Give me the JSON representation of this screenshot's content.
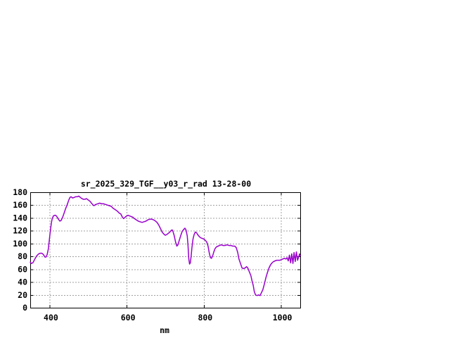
{
  "window": {
    "background": "#ffffff"
  },
  "chart_data": {
    "type": "line",
    "title": "sr_2025_329_TGF__y03_r_rad 13-28-00",
    "xlabel": "nm",
    "ylabel": "",
    "xlim": [
      350,
      1050
    ],
    "ylim": [
      0,
      180
    ],
    "xticks": [
      400,
      600,
      800,
      1000
    ],
    "yticks": [
      0,
      20,
      40,
      60,
      80,
      100,
      120,
      140,
      160,
      180
    ],
    "grid": true,
    "legend_position": "none",
    "line_color": "#9900cc",
    "grid_color": "#a0a0a0",
    "axis_color": "#000000",
    "points": [
      [
        350,
        71
      ],
      [
        353,
        69
      ],
      [
        357,
        70
      ],
      [
        362,
        76
      ],
      [
        367,
        81
      ],
      [
        372,
        84
      ],
      [
        376,
        85
      ],
      [
        380,
        85
      ],
      [
        384,
        83
      ],
      [
        388,
        79
      ],
      [
        391,
        79
      ],
      [
        394,
        83
      ],
      [
        397,
        92
      ],
      [
        399,
        103
      ],
      [
        401,
        114
      ],
      [
        403,
        124
      ],
      [
        405,
        133
      ],
      [
        407,
        139
      ],
      [
        410,
        143
      ],
      [
        413,
        144
      ],
      [
        416,
        144
      ],
      [
        419,
        142
      ],
      [
        423,
        138
      ],
      [
        427,
        135
      ],
      [
        430,
        136
      ],
      [
        434,
        141
      ],
      [
        438,
        148
      ],
      [
        442,
        155
      ],
      [
        446,
        161
      ],
      [
        450,
        168
      ],
      [
        453,
        172
      ],
      [
        456,
        173
      ],
      [
        460,
        171
      ],
      [
        464,
        172
      ],
      [
        468,
        173
      ],
      [
        472,
        173
      ],
      [
        476,
        174
      ],
      [
        480,
        172
      ],
      [
        484,
        170
      ],
      [
        488,
        169
      ],
      [
        492,
        169
      ],
      [
        496,
        170
      ],
      [
        500,
        168
      ],
      [
        505,
        166
      ],
      [
        510,
        162
      ],
      [
        515,
        159
      ],
      [
        520,
        161
      ],
      [
        525,
        162
      ],
      [
        530,
        163
      ],
      [
        535,
        162
      ],
      [
        540,
        162
      ],
      [
        545,
        161
      ],
      [
        550,
        160
      ],
      [
        555,
        159
      ],
      [
        560,
        158
      ],
      [
        565,
        155
      ],
      [
        570,
        153
      ],
      [
        575,
        151
      ],
      [
        580,
        148
      ],
      [
        585,
        146
      ],
      [
        589,
        141
      ],
      [
        592,
        139
      ],
      [
        596,
        141
      ],
      [
        600,
        143
      ],
      [
        604,
        144
      ],
      [
        608,
        143
      ],
      [
        612,
        142
      ],
      [
        616,
        141
      ],
      [
        620,
        139
      ],
      [
        625,
        137
      ],
      [
        630,
        135
      ],
      [
        635,
        134
      ],
      [
        640,
        133
      ],
      [
        645,
        134
      ],
      [
        650,
        135
      ],
      [
        655,
        137
      ],
      [
        660,
        138
      ],
      [
        665,
        138
      ],
      [
        670,
        137
      ],
      [
        675,
        135
      ],
      [
        680,
        132
      ],
      [
        684,
        128
      ],
      [
        688,
        123
      ],
      [
        692,
        118
      ],
      [
        696,
        115
      ],
      [
        700,
        113
      ],
      [
        704,
        114
      ],
      [
        708,
        116
      ],
      [
        712,
        118
      ],
      [
        716,
        121
      ],
      [
        719,
        121
      ],
      [
        723,
        113
      ],
      [
        727,
        102
      ],
      [
        730,
        96
      ],
      [
        733,
        98
      ],
      [
        736,
        104
      ],
      [
        740,
        112
      ],
      [
        744,
        119
      ],
      [
        748,
        122
      ],
      [
        751,
        124
      ],
      [
        754,
        121
      ],
      [
        757,
        112
      ],
      [
        759,
        97
      ],
      [
        761,
        76
      ],
      [
        763,
        68
      ],
      [
        765,
        70
      ],
      [
        767,
        80
      ],
      [
        769,
        93
      ],
      [
        772,
        107
      ],
      [
        775,
        114
      ],
      [
        778,
        118
      ],
      [
        781,
        117
      ],
      [
        784,
        114
      ],
      [
        788,
        111
      ],
      [
        792,
        109
      ],
      [
        796,
        108
      ],
      [
        800,
        107
      ],
      [
        804,
        105
      ],
      [
        808,
        102
      ],
      [
        811,
        96
      ],
      [
        814,
        86
      ],
      [
        817,
        78
      ],
      [
        820,
        77
      ],
      [
        823,
        81
      ],
      [
        826,
        87
      ],
      [
        829,
        92
      ],
      [
        833,
        95
      ],
      [
        837,
        96
      ],
      [
        841,
        97
      ],
      [
        845,
        98
      ],
      [
        850,
        97
      ],
      [
        855,
        97
      ],
      [
        860,
        98
      ],
      [
        865,
        97
      ],
      [
        870,
        97
      ],
      [
        875,
        96
      ],
      [
        880,
        96
      ],
      [
        884,
        94
      ],
      [
        888,
        86
      ],
      [
        891,
        76
      ],
      [
        895,
        69
      ],
      [
        899,
        62
      ],
      [
        903,
        61
      ],
      [
        907,
        62
      ],
      [
        911,
        64
      ],
      [
        914,
        62
      ],
      [
        918,
        56
      ],
      [
        922,
        50
      ],
      [
        925,
        42
      ],
      [
        928,
        35
      ],
      [
        931,
        25
      ],
      [
        934,
        20
      ],
      [
        938,
        19
      ],
      [
        942,
        20
      ],
      [
        946,
        19
      ],
      [
        950,
        24
      ],
      [
        953,
        28
      ],
      [
        957,
        37
      ],
      [
        961,
        47
      ],
      [
        965,
        55
      ],
      [
        969,
        62
      ],
      [
        973,
        67
      ],
      [
        977,
        70
      ],
      [
        981,
        72
      ],
      [
        985,
        73
      ],
      [
        989,
        74
      ],
      [
        993,
        74
      ],
      [
        997,
        74
      ],
      [
        1001,
        75
      ],
      [
        1005,
        76
      ],
      [
        1009,
        77
      ],
      [
        1013,
        76
      ],
      [
        1016,
        78
      ],
      [
        1019,
        73
      ],
      [
        1022,
        82
      ],
      [
        1025,
        70
      ],
      [
        1028,
        84
      ],
      [
        1031,
        69
      ],
      [
        1034,
        86
      ],
      [
        1037,
        72
      ],
      [
        1040,
        87
      ],
      [
        1043,
        74
      ],
      [
        1046,
        79
      ],
      [
        1048,
        84
      ],
      [
        1050,
        81
      ]
    ]
  }
}
